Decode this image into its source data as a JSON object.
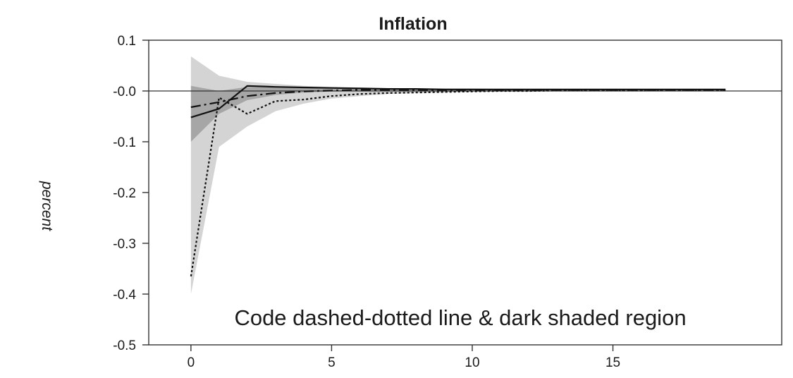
{
  "chart_data": {
    "type": "line",
    "title": "Inflation",
    "ylabel": "percent",
    "xlabel": "",
    "xlim": [
      -1.5,
      21
    ],
    "ylim": [
      -0.5,
      0.1
    ],
    "x_ticks": [
      0,
      5,
      10,
      15
    ],
    "y_ticks": [
      0.1,
      0.0,
      -0.1,
      -0.2,
      -0.3,
      -0.4,
      -0.5
    ],
    "y_tick_labels": [
      "0.1",
      "-0.0",
      "-0.1",
      "-0.2",
      "-0.3",
      "-0.4",
      "-0.5"
    ],
    "zero_line": true,
    "grid": false,
    "annotation": "Code dashed-dotted line & dark shaded region",
    "x": [
      0,
      1,
      2,
      3,
      4,
      5,
      6,
      7,
      8,
      9,
      10,
      11,
      12,
      13,
      14,
      15,
      16,
      17,
      18,
      19
    ],
    "series": [
      {
        "style": "solid",
        "values": [
          -0.052,
          -0.035,
          0.01,
          0.008,
          0.007,
          0.006,
          0.005,
          0.004,
          0.004,
          0.003,
          0.003,
          0.003,
          0.003,
          0.003,
          0.003,
          0.003,
          0.003,
          0.003,
          0.003,
          0.003
        ]
      },
      {
        "style": "dash-dot",
        "values": [
          -0.032,
          -0.022,
          -0.01,
          -0.004,
          -0.001,
          0.001,
          0.002,
          0.002,
          0.002,
          0.002,
          0.002,
          0.002,
          0.002,
          0.002,
          0.002,
          0.002,
          0.002,
          0.002,
          0.002,
          0.002
        ]
      },
      {
        "style": "dotted",
        "values": [
          -0.365,
          -0.013,
          -0.045,
          -0.02,
          -0.017,
          -0.01,
          -0.006,
          -0.004,
          -0.003,
          -0.002,
          -0.001,
          0.0,
          0.0,
          0.001,
          0.001,
          0.001,
          0.001,
          0.002,
          0.002,
          0.002
        ]
      }
    ],
    "bands": [
      {
        "shade": "light",
        "color": "#d4d4d4",
        "upper": [
          0.068,
          0.03,
          0.018,
          0.014,
          0.01,
          0.008,
          0.007,
          0.006,
          0.005,
          0.005,
          0.005,
          0.004,
          0.004,
          0.004,
          0.004,
          0.004,
          0.004,
          0.004,
          0.004,
          0.004
        ],
        "lower": [
          -0.4,
          -0.11,
          -0.07,
          -0.04,
          -0.025,
          -0.015,
          -0.01,
          -0.006,
          -0.004,
          -0.003,
          -0.002,
          -0.001,
          -0.001,
          0.0,
          0.0,
          0.0,
          0.0,
          0.0,
          0.0,
          0.0
        ]
      },
      {
        "shade": "dark",
        "color": "#a6a6a6",
        "upper": [
          0.01,
          0.0,
          0.008,
          0.007,
          0.006,
          0.005,
          0.004,
          0.004,
          0.003,
          0.003,
          0.003,
          0.003,
          0.003,
          0.003,
          0.003,
          0.003,
          0.003,
          0.003,
          0.003,
          0.003
        ],
        "lower": [
          -0.1,
          -0.045,
          -0.018,
          -0.008,
          -0.003,
          -0.001,
          0.0,
          0.001,
          0.001,
          0.001,
          0.001,
          0.001,
          0.001,
          0.001,
          0.001,
          0.001,
          0.001,
          0.001,
          0.001,
          0.001
        ]
      }
    ]
  }
}
